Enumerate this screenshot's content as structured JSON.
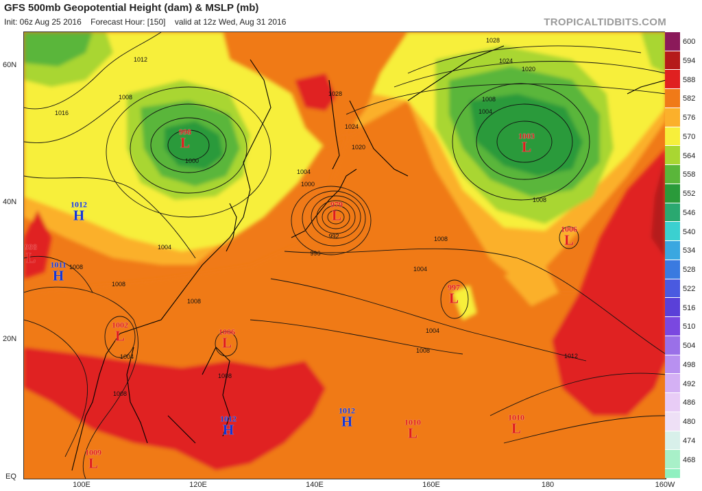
{
  "header": {
    "title": "GFS 500mb Geopotential Height (dam) & MSLP (mb)",
    "init": "Init: 06z Aug 25 2016",
    "forecast_hour": "Forecast Hour: [150]",
    "valid": "valid at 12z Wed, Aug 31 2016",
    "brand": "TROPICALTIDBITS.COM"
  },
  "axes": {
    "lat_labels": [
      "60N",
      "40N",
      "20N",
      "EQ"
    ],
    "lon_labels": [
      "100E",
      "120E",
      "140E",
      "160E",
      "180",
      "160W"
    ]
  },
  "colorbar": {
    "levels": [
      "600",
      "594",
      "588",
      "582",
      "576",
      "570",
      "564",
      "558",
      "552",
      "546",
      "540",
      "534",
      "528",
      "522",
      "516",
      "510",
      "504",
      "498",
      "492",
      "486",
      "480",
      "474",
      "468"
    ],
    "colors": [
      "#8b1a5a",
      "#b51a1a",
      "#e02020",
      "#f07a18",
      "#fbb02b",
      "#f7ef3b",
      "#a9d632",
      "#5ab63a",
      "#2a9a3a",
      "#2aa870",
      "#3bd0d0",
      "#3aa7e0",
      "#3a7ae0",
      "#4a5ae0",
      "#5a40d8",
      "#7a48e0",
      "#9a70e8",
      "#b890f0",
      "#d4b0f4",
      "#e8ccf6",
      "#eee0f6",
      "#d8f0ea",
      "#a8f0c8"
    ]
  },
  "pressure_centers": [
    {
      "kind": "L",
      "value": "998"
    },
    {
      "kind": "H",
      "value": "1012"
    },
    {
      "kind": "L",
      "value": "998"
    },
    {
      "kind": "H",
      "value": "1011"
    },
    {
      "kind": "L",
      "value": "979"
    },
    {
      "kind": "L",
      "value": "1003"
    },
    {
      "kind": "L",
      "value": "1006"
    },
    {
      "kind": "L",
      "value": "997"
    },
    {
      "kind": "L",
      "value": "1002"
    },
    {
      "kind": "L",
      "value": "1006"
    },
    {
      "kind": "H",
      "value": "1012"
    },
    {
      "kind": "H",
      "value": "1012"
    },
    {
      "kind": "L",
      "value": "1010"
    },
    {
      "kind": "L",
      "value": "1010"
    },
    {
      "kind": "L",
      "value": "1009"
    }
  ],
  "isobar_labels": [
    "1012",
    "1016",
    "1008",
    "1000",
    "1028",
    "1024",
    "1020",
    "1004",
    "1000",
    "992",
    "996",
    "1008",
    "1004",
    "1008",
    "1004",
    "1008",
    "1004",
    "1008",
    "1028",
    "1024",
    "1020",
    "1008",
    "1004",
    "1008",
    "1012",
    "1008",
    "1008",
    "1004",
    "1008"
  ]
}
